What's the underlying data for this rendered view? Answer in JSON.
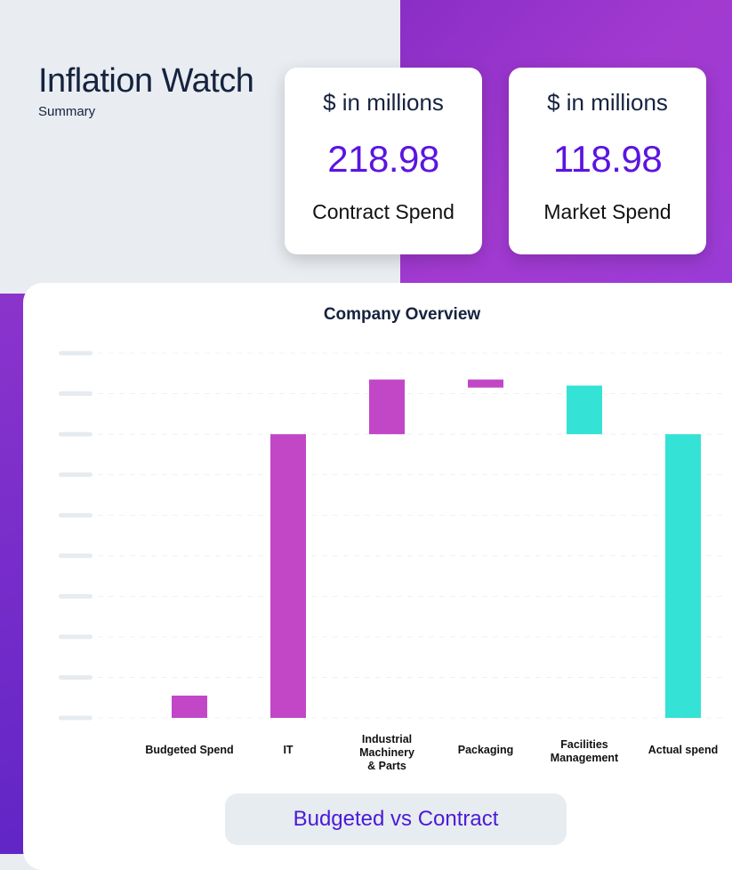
{
  "header": {
    "title": "Inflation Watch",
    "subtitle": "Summary"
  },
  "kpis": [
    {
      "unit": "$ in millions",
      "value": "218.98",
      "label": "Contract Spend"
    },
    {
      "unit": "$ in millions",
      "value": "118.98",
      "label": "Market Spend"
    }
  ],
  "colors": {
    "increase": "#c247c7",
    "decrease": "#35e2d6",
    "accent": "#5b14e0",
    "background_purple": "#8a2ec6"
  },
  "chart_data": {
    "type": "bar",
    "subtype": "waterfall",
    "title": "Company Overview",
    "categories": [
      "Budgeted Spend",
      "IT",
      "Industrial Machinery & Parts",
      "Packaging",
      "Facilities Management",
      "Actual spend"
    ],
    "category_lines": [
      [
        "Budgeted Spend"
      ],
      [
        "IT"
      ],
      [
        "Industrial",
        "Machinery",
        "& Parts"
      ],
      [
        "Packaging"
      ],
      [
        "Facilities",
        "Management"
      ],
      [
        "Actual spend"
      ]
    ],
    "bars": [
      {
        "category": "Budgeted Spend",
        "start": 0,
        "end": 0.55,
        "kind": "increase"
      },
      {
        "category": "IT",
        "start": 0,
        "end": 7.0,
        "kind": "increase"
      },
      {
        "category": "Industrial Machinery & Parts",
        "start": 7.0,
        "end": 8.35,
        "kind": "increase"
      },
      {
        "category": "Packaging",
        "start": 8.15,
        "end": 8.35,
        "kind": "increase"
      },
      {
        "category": "Facilities Management",
        "start": 8.2,
        "end": 7.0,
        "kind": "decrease"
      },
      {
        "category": "Actual spend",
        "start": 0,
        "end": 7.0,
        "kind": "decrease"
      }
    ],
    "ylim": [
      0,
      9
    ],
    "grid": true,
    "legend": "none"
  },
  "footer": {
    "toggle_label": "Budgeted vs Contract"
  }
}
